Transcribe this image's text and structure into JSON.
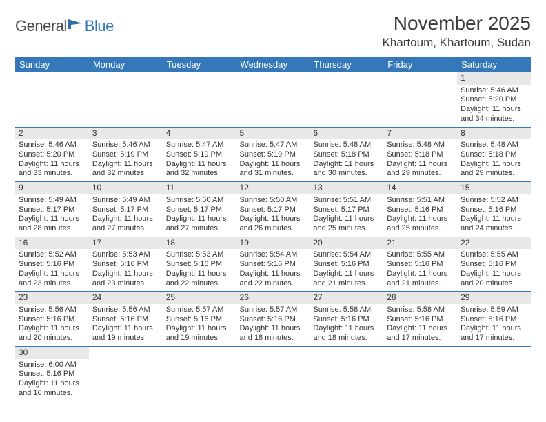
{
  "logo": {
    "text_main": "General",
    "text_blue": "Blue",
    "icon_color": "#2f6fa8"
  },
  "title": "November 2025",
  "location": "Khartoum, Khartoum, Sudan",
  "header_bg": "#3478b9",
  "header_text_color": "#ffffff",
  "daynum_bg": "#e8e8e8",
  "border_color": "#3478b9",
  "weekdays": [
    "Sunday",
    "Monday",
    "Tuesday",
    "Wednesday",
    "Thursday",
    "Friday",
    "Saturday"
  ],
  "weeks": [
    [
      {
        "num": "",
        "lines": []
      },
      {
        "num": "",
        "lines": []
      },
      {
        "num": "",
        "lines": []
      },
      {
        "num": "",
        "lines": []
      },
      {
        "num": "",
        "lines": []
      },
      {
        "num": "",
        "lines": []
      },
      {
        "num": "1",
        "lines": [
          "Sunrise: 5:46 AM",
          "Sunset: 5:20 PM",
          "Daylight: 11 hours and 34 minutes."
        ]
      }
    ],
    [
      {
        "num": "2",
        "lines": [
          "Sunrise: 5:46 AM",
          "Sunset: 5:20 PM",
          "Daylight: 11 hours and 33 minutes."
        ]
      },
      {
        "num": "3",
        "lines": [
          "Sunrise: 5:46 AM",
          "Sunset: 5:19 PM",
          "Daylight: 11 hours and 32 minutes."
        ]
      },
      {
        "num": "4",
        "lines": [
          "Sunrise: 5:47 AM",
          "Sunset: 5:19 PM",
          "Daylight: 11 hours and 32 minutes."
        ]
      },
      {
        "num": "5",
        "lines": [
          "Sunrise: 5:47 AM",
          "Sunset: 5:19 PM",
          "Daylight: 11 hours and 31 minutes."
        ]
      },
      {
        "num": "6",
        "lines": [
          "Sunrise: 5:48 AM",
          "Sunset: 5:18 PM",
          "Daylight: 11 hours and 30 minutes."
        ]
      },
      {
        "num": "7",
        "lines": [
          "Sunrise: 5:48 AM",
          "Sunset: 5:18 PM",
          "Daylight: 11 hours and 29 minutes."
        ]
      },
      {
        "num": "8",
        "lines": [
          "Sunrise: 5:48 AM",
          "Sunset: 5:18 PM",
          "Daylight: 11 hours and 29 minutes."
        ]
      }
    ],
    [
      {
        "num": "9",
        "lines": [
          "Sunrise: 5:49 AM",
          "Sunset: 5:17 PM",
          "Daylight: 11 hours and 28 minutes."
        ]
      },
      {
        "num": "10",
        "lines": [
          "Sunrise: 5:49 AM",
          "Sunset: 5:17 PM",
          "Daylight: 11 hours and 27 minutes."
        ]
      },
      {
        "num": "11",
        "lines": [
          "Sunrise: 5:50 AM",
          "Sunset: 5:17 PM",
          "Daylight: 11 hours and 27 minutes."
        ]
      },
      {
        "num": "12",
        "lines": [
          "Sunrise: 5:50 AM",
          "Sunset: 5:17 PM",
          "Daylight: 11 hours and 26 minutes."
        ]
      },
      {
        "num": "13",
        "lines": [
          "Sunrise: 5:51 AM",
          "Sunset: 5:17 PM",
          "Daylight: 11 hours and 25 minutes."
        ]
      },
      {
        "num": "14",
        "lines": [
          "Sunrise: 5:51 AM",
          "Sunset: 5:16 PM",
          "Daylight: 11 hours and 25 minutes."
        ]
      },
      {
        "num": "15",
        "lines": [
          "Sunrise: 5:52 AM",
          "Sunset: 5:16 PM",
          "Daylight: 11 hours and 24 minutes."
        ]
      }
    ],
    [
      {
        "num": "16",
        "lines": [
          "Sunrise: 5:52 AM",
          "Sunset: 5:16 PM",
          "Daylight: 11 hours and 23 minutes."
        ]
      },
      {
        "num": "17",
        "lines": [
          "Sunrise: 5:53 AM",
          "Sunset: 5:16 PM",
          "Daylight: 11 hours and 23 minutes."
        ]
      },
      {
        "num": "18",
        "lines": [
          "Sunrise: 5:53 AM",
          "Sunset: 5:16 PM",
          "Daylight: 11 hours and 22 minutes."
        ]
      },
      {
        "num": "19",
        "lines": [
          "Sunrise: 5:54 AM",
          "Sunset: 5:16 PM",
          "Daylight: 11 hours and 22 minutes."
        ]
      },
      {
        "num": "20",
        "lines": [
          "Sunrise: 5:54 AM",
          "Sunset: 5:16 PM",
          "Daylight: 11 hours and 21 minutes."
        ]
      },
      {
        "num": "21",
        "lines": [
          "Sunrise: 5:55 AM",
          "Sunset: 5:16 PM",
          "Daylight: 11 hours and 21 minutes."
        ]
      },
      {
        "num": "22",
        "lines": [
          "Sunrise: 5:55 AM",
          "Sunset: 5:16 PM",
          "Daylight: 11 hours and 20 minutes."
        ]
      }
    ],
    [
      {
        "num": "23",
        "lines": [
          "Sunrise: 5:56 AM",
          "Sunset: 5:16 PM",
          "Daylight: 11 hours and 20 minutes."
        ]
      },
      {
        "num": "24",
        "lines": [
          "Sunrise: 5:56 AM",
          "Sunset: 5:16 PM",
          "Daylight: 11 hours and 19 minutes."
        ]
      },
      {
        "num": "25",
        "lines": [
          "Sunrise: 5:57 AM",
          "Sunset: 5:16 PM",
          "Daylight: 11 hours and 19 minutes."
        ]
      },
      {
        "num": "26",
        "lines": [
          "Sunrise: 5:57 AM",
          "Sunset: 5:16 PM",
          "Daylight: 11 hours and 18 minutes."
        ]
      },
      {
        "num": "27",
        "lines": [
          "Sunrise: 5:58 AM",
          "Sunset: 5:16 PM",
          "Daylight: 11 hours and 18 minutes."
        ]
      },
      {
        "num": "28",
        "lines": [
          "Sunrise: 5:58 AM",
          "Sunset: 5:16 PM",
          "Daylight: 11 hours and 17 minutes."
        ]
      },
      {
        "num": "29",
        "lines": [
          "Sunrise: 5:59 AM",
          "Sunset: 5:16 PM",
          "Daylight: 11 hours and 17 minutes."
        ]
      }
    ],
    [
      {
        "num": "30",
        "lines": [
          "Sunrise: 6:00 AM",
          "Sunset: 5:16 PM",
          "Daylight: 11 hours and 16 minutes."
        ]
      },
      {
        "num": "",
        "lines": []
      },
      {
        "num": "",
        "lines": []
      },
      {
        "num": "",
        "lines": []
      },
      {
        "num": "",
        "lines": []
      },
      {
        "num": "",
        "lines": []
      },
      {
        "num": "",
        "lines": []
      }
    ]
  ]
}
